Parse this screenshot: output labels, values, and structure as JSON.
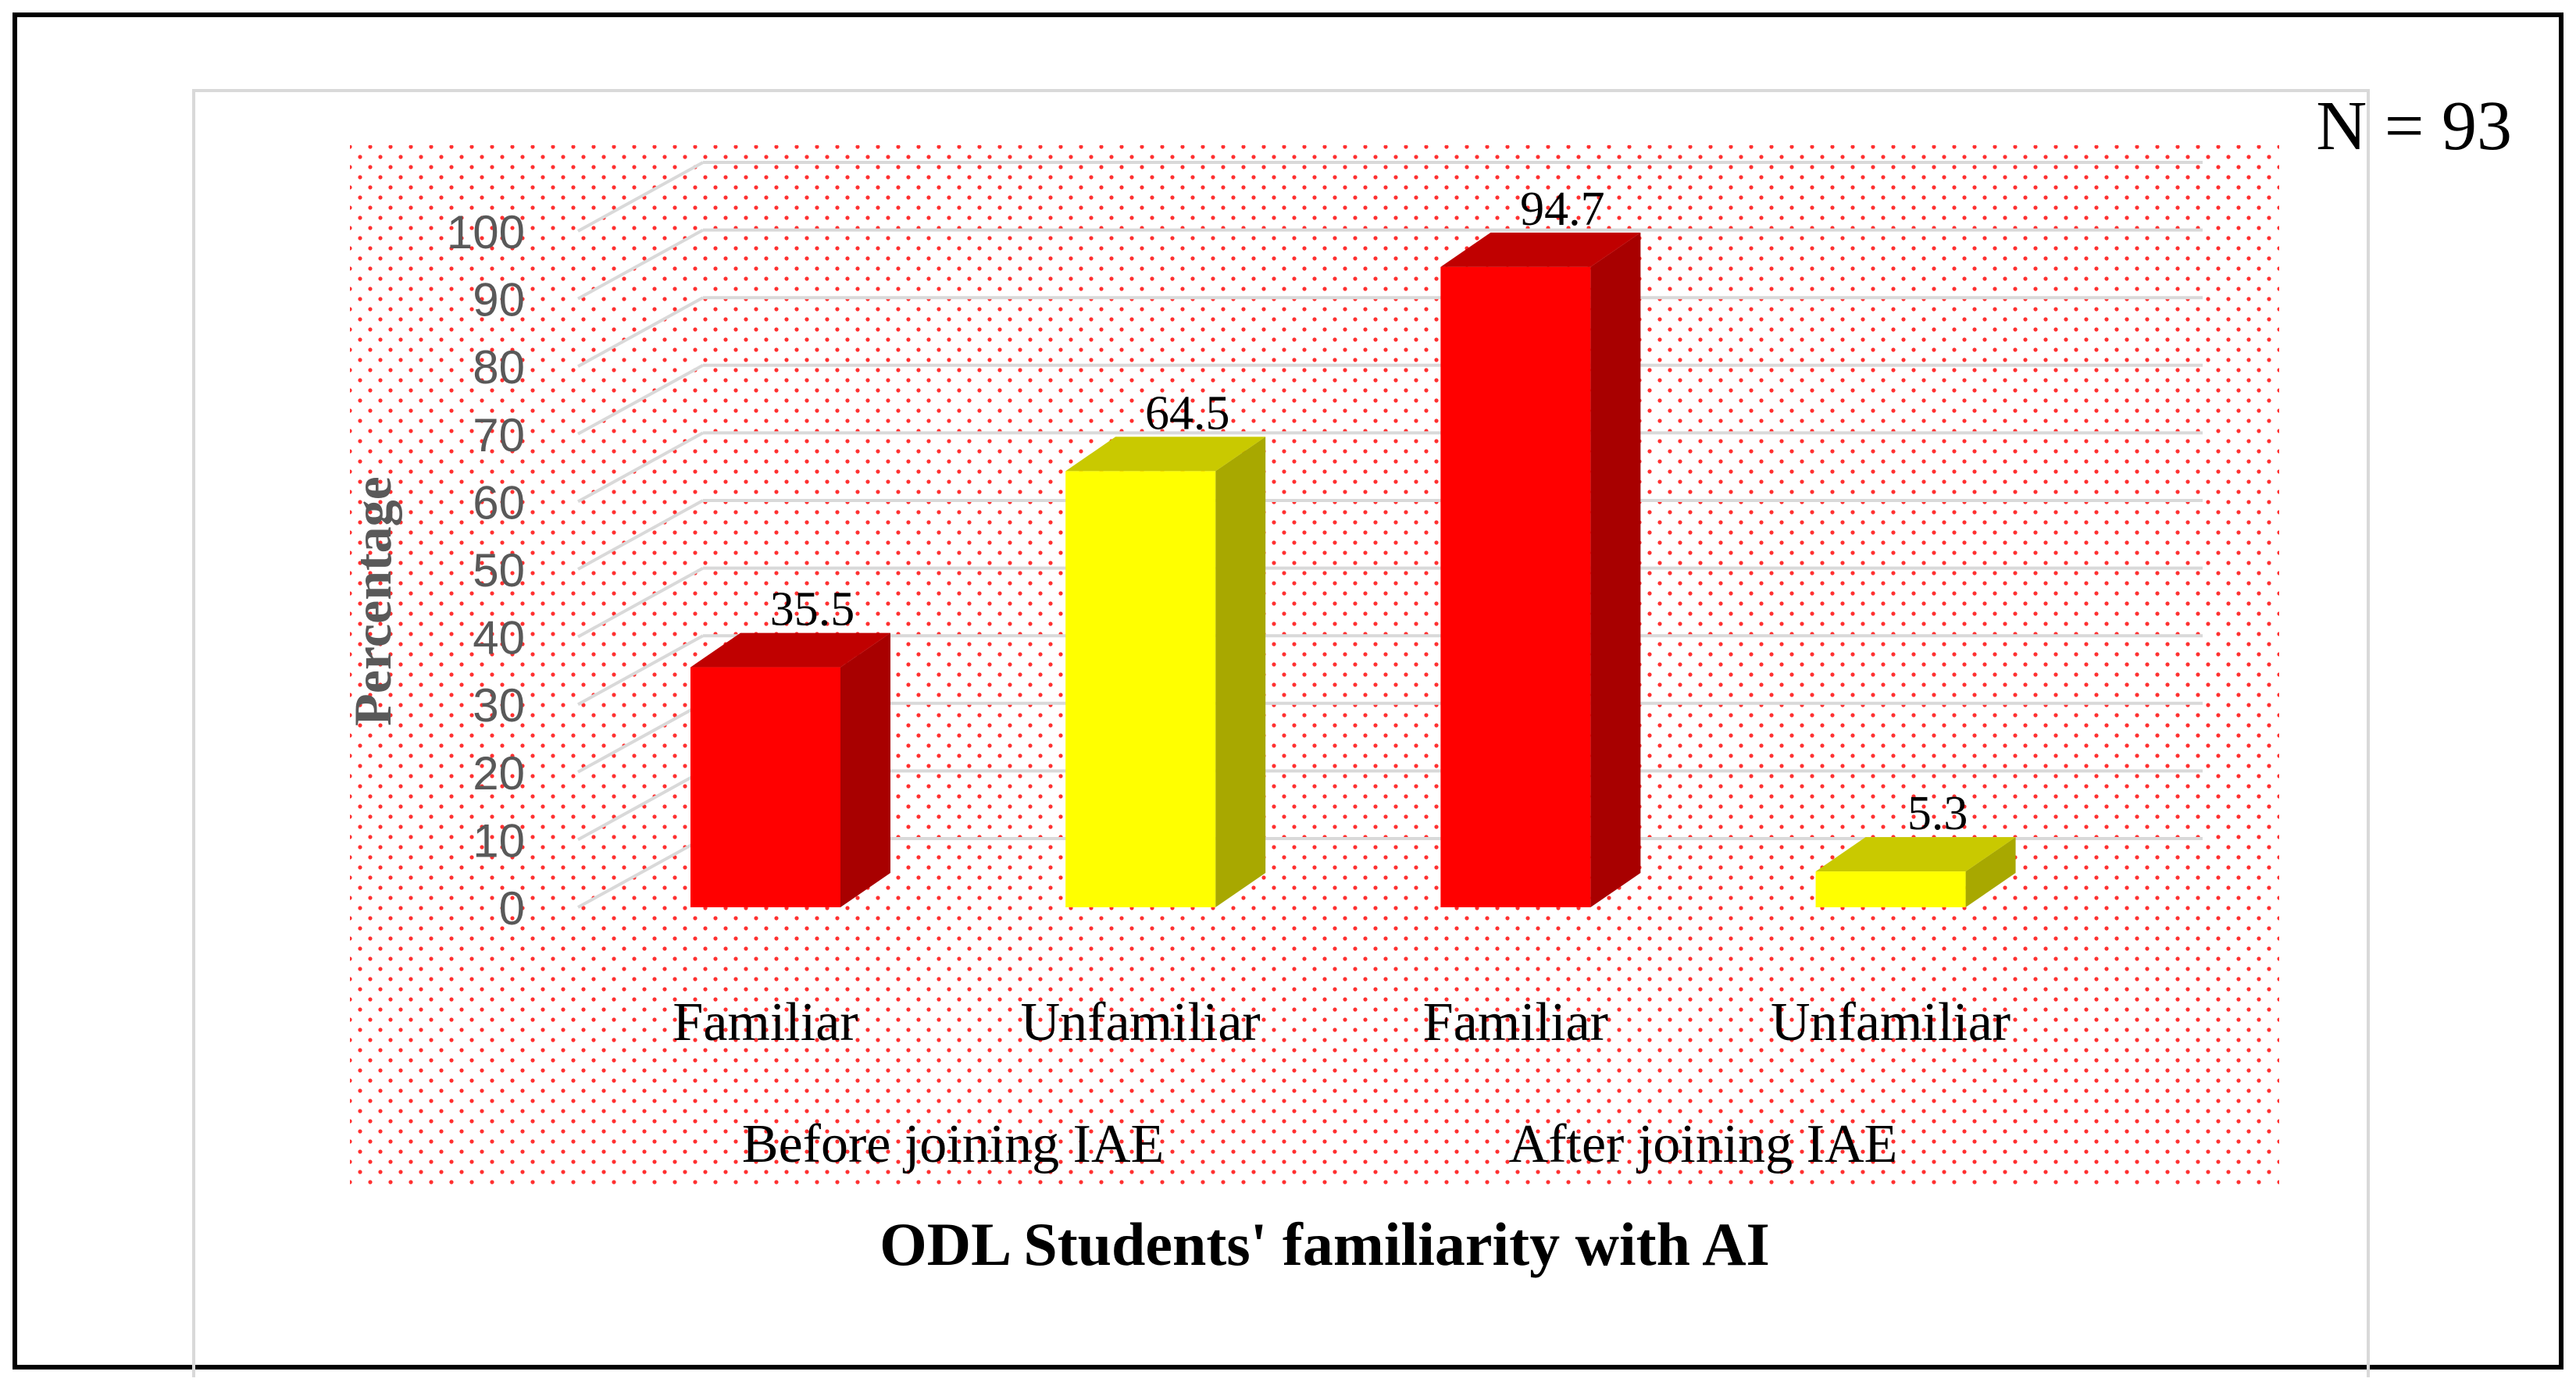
{
  "annotation": "N = 93",
  "chart_data": {
    "type": "bar",
    "title": "",
    "xlabel": "ODL Students' familiarity with AI",
    "ylabel": "Percentage",
    "ylim": [
      0,
      100
    ],
    "yticks": [
      0,
      10,
      20,
      30,
      40,
      50,
      60,
      70,
      80,
      90,
      100
    ],
    "groups": [
      "Before joining IAE",
      "After joining IAE"
    ],
    "categories": [
      "Familiar",
      "Unfamiliar",
      "Familiar",
      "Unfamiliar"
    ],
    "category_groups": [
      0,
      0,
      1,
      1
    ],
    "values": [
      35.5,
      64.5,
      94.7,
      5.3
    ],
    "data_labels": [
      "35.5",
      "64.5",
      "94.7",
      "5.3"
    ],
    "colors": [
      "#ff0000",
      "#ffff00",
      "#ff0000",
      "#ffff00"
    ],
    "side_colors": [
      "#a80000",
      "#a8a800",
      "#a80000",
      "#a8a800"
    ],
    "top_colors": [
      "#c00000",
      "#c9c900",
      "#c00000",
      "#c9c900"
    ],
    "style": "3d-column",
    "plot_background": "red dotted pattern",
    "grid": true,
    "legend": "none"
  }
}
